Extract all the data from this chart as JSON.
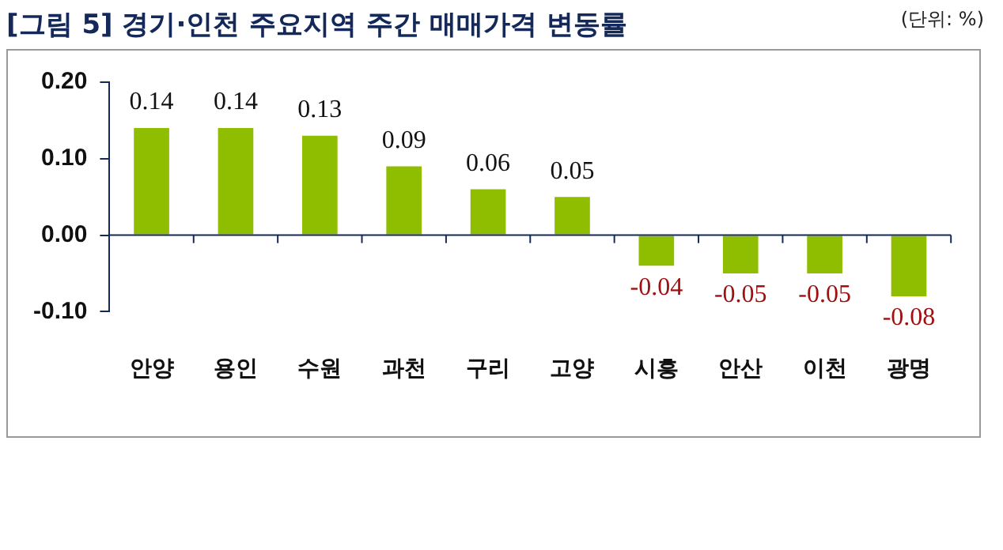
{
  "chart_data": {
    "type": "bar",
    "title": "[그림 5] 경기·인천 주요지역 주간  매매가격 변동률",
    "annotations": [
      "(단위: %)"
    ],
    "categories": [
      "안양",
      "용인",
      "수원",
      "과천",
      "구리",
      "고양",
      "시흥",
      "안산",
      "이천",
      "광명"
    ],
    "values": [
      0.14,
      0.14,
      0.13,
      0.09,
      0.06,
      0.05,
      -0.04,
      -0.05,
      -0.05,
      -0.08
    ],
    "color": "#8fbe00",
    "ylim": [
      -0.1,
      0.2
    ],
    "yticks": [
      {
        "value": -0.1,
        "label": "-0.10"
      },
      {
        "value": 0,
        "label": "0.00"
      },
      {
        "value": 0.1,
        "label": "0.10"
      },
      {
        "value": 0.2,
        "label": "0.20"
      }
    ],
    "data_labels": true,
    "grid": false,
    "legend": false
  }
}
